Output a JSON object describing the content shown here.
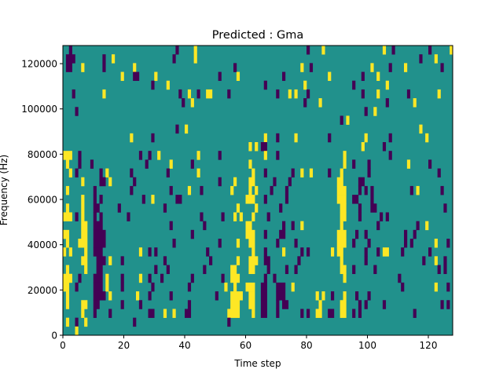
{
  "chart_data": {
    "type": "heatmap",
    "title": "Predicted : Gma",
    "xlabel": "Time step",
    "ylabel": "Frequency (Hz)",
    "xlim": [
      0,
      128
    ],
    "ylim": [
      0,
      128000
    ],
    "xticks": [
      0,
      20,
      40,
      60,
      80,
      100,
      120
    ],
    "yticks": [
      0,
      20000,
      40000,
      60000,
      80000,
      100000,
      120000
    ],
    "n_time_steps": 128,
    "n_freq_bins": 33,
    "colormap": {
      "p": "#440154",
      "default": "#21918c",
      "y": "#fde725"
    },
    "value_levels": {
      "p": 0,
      "default": 1,
      "y": 2
    },
    "rows_top_to_bottom": [
      "p2 p37 y43 p80 y85 y105 p108 p120 y127",
      "p1-3 p13 y16 p36 y43 p117 y122",
      "p1-2 y6 p13 y23 p56 y78 p81 y101 p107 y112 p124",
      "y19 p23-24 y30 p51 y57 p72 y87 p98 y103",
      "p29 y34 p66 y79 p95 y106",
      "p3 y13 p38 y41 p44 y47-48 p54 p70 y74 y76 p80 p98 y103 p113 y123",
      "p39 y42 p79 y84 p106 y115",
      "p4 p99 y102",
      "p91 y93",
      "p37 y40 y117",
      "y22 p29 y66 p70 y76 p87 y99 p107 y119",
      "y61 y63 p65-66 y98 p105",
      "y0-2 p5 p25 p28 y31 y44 p51 y66 p70 y92 p107",
      "y1 p5 p9 p27 y35 p42 y61 y92 p95 p100 y113 p120",
      "y2 p4 p12 y14 p22 p34 y44 y62 p66 p75 y78 y81 p87 y91 p100 p123",
      "y6 p12-13 y15 p23 p51 y56 y61-62 p69 p74 y90-91 p97-98",
      "y1 p10 p22 p35 y41 p45 y55 y61 y63 p68 p73 y90-92 p97 p99 p101 p114 y116 p124",
      "y6 p10 p12 p26 y29 p37-38 y60-62 p66 p73 y90-92 p95-96 p101",
      "y1 y6 p10-11 p18 p33 y57 y63 p71 y91-92 p97 p101-102 p125",
      "y0-2 p4 y6 p10 p12 p21 p45 p52 y56 y58 y62 p67 y91-92 p97 p104 p106",
      "y6-7 p10-12 p35 p46 y60-61 p72 p75 y78 y91 p103 p116 y119",
      "y0-1 y6-7 p10-13 p42 y60-62 p66 p71-72 y90-92 p96 p99 p112 p115",
      "y1 y5-7 p10-13 p36 p51 y57 y61-62 p70 p76 y90-92 p95 p100 p112 p114 y122 p126",
      "y0 y2 y7 p10-12 y25 p28 p30 p47 y62 p66 y72 p78 p80 y88 y90-91 p99 p103 y105-106 p111 p120",
      "y6-7 p11-13 y15 p19 p33 p48 y57 y61-63 p66-67 p77 y91 p99 p118 y122 p125",
      "y1 y7 p11-12 p30 p34 p46 y55-56 y61-62 p67 p73 p76 y91-92 p95 p102 p123 p125",
      "y0-2 p5 p10-12 y14 p19 y25 p28 p32 p42 p52 y55-57 p66 p69 y92 p110",
      "y0-1 p4 p10-12 y14 p19 p29 p41 y53 y56 y60-62 p65-66 p70-72 y75 p111 y122 p126",
      "y1 p10-13 y15 y24 p28 p35 p50 y55-58 y61-62 p65-66 p70-72 y83 y85 p88 y92 p96 p100",
      "y1 y6-7 p10-11 p19 p25 p41 y55-57 y61-62 p65-66 p70 p72-73 y84 y91-92 p97 p99 p105 p124 p126",
      "y6 p10 p15 p28-29 y33 y36 p40-41 y54-57 y62 p65-66 p70 p78 p80 y83-84 p87-88 y91-92 p95 p97 p115",
      "y1 p4 y7 p23 p54",
      "y4"
    ]
  }
}
